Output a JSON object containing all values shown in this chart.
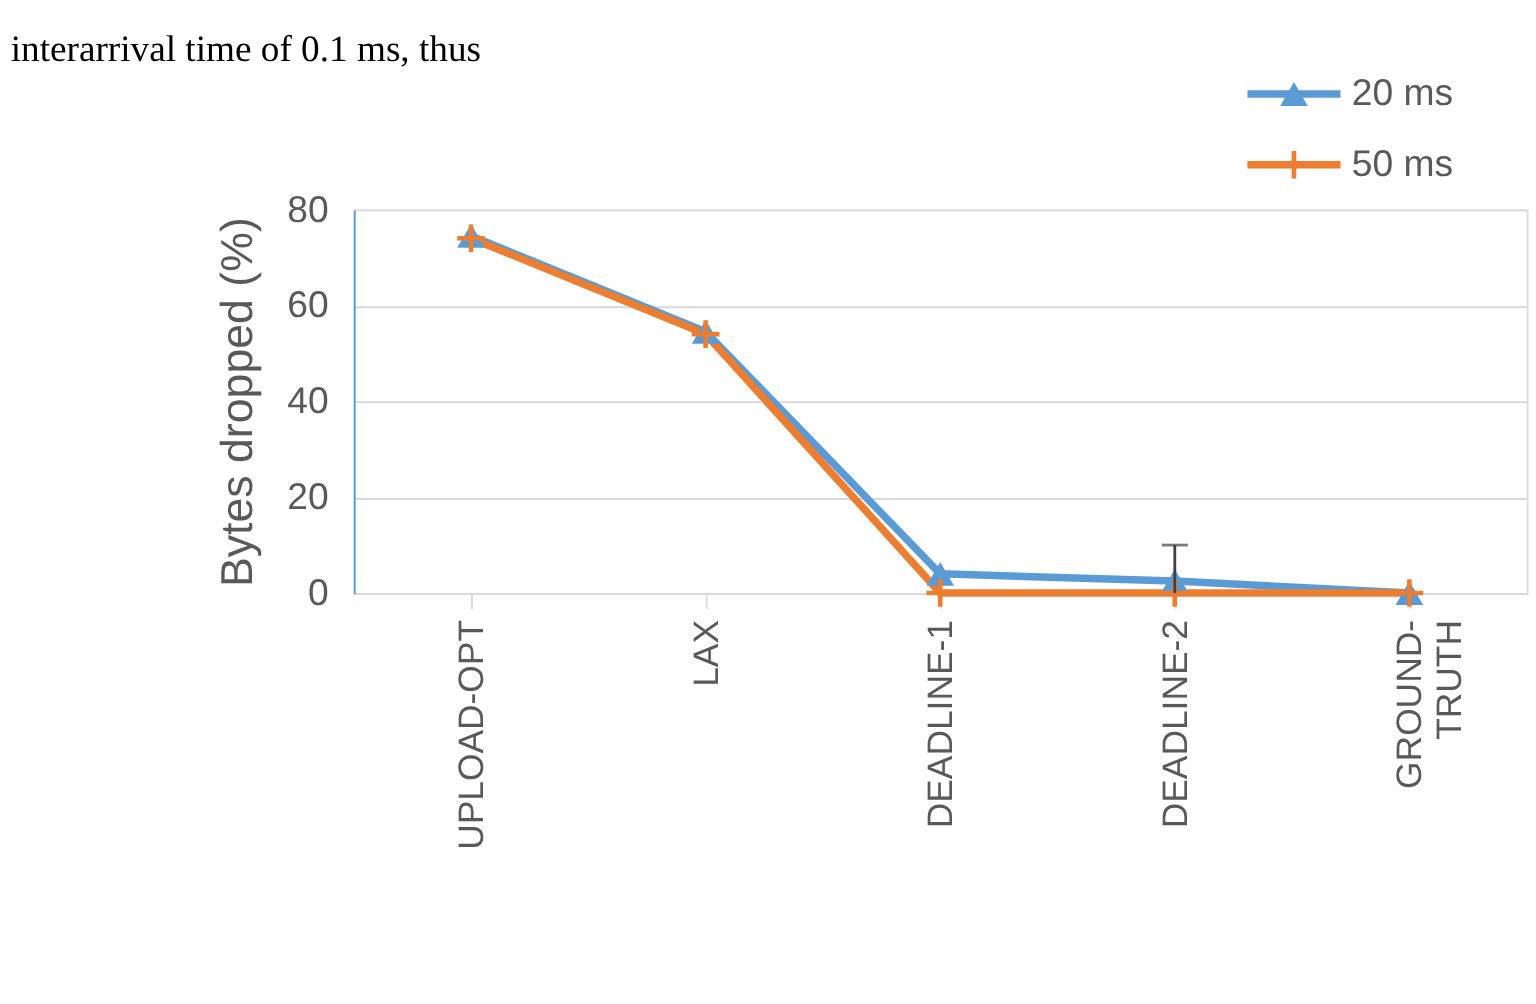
{
  "chart_data": {
    "type": "line",
    "annotations": [
      "interarrival time of 0.1 ms, thus"
    ],
    "ylabel": "Bytes dropped (%)",
    "categories": [
      "UPLOAD-OPT",
      "LAX",
      "DEADLINE-1",
      "DEADLINE-2",
      "GROUND-TRUTH"
    ],
    "series": [
      {
        "name": "20 ms",
        "color": "#5b9bd5",
        "marker": "triangle",
        "values": [
          74.5,
          54.5,
          4,
          2.5,
          0
        ],
        "errors": [
          null,
          null,
          null,
          [
            0,
            10
          ],
          null
        ]
      },
      {
        "name": "50 ms",
        "color": "#ed7d31",
        "marker": "cross",
        "values": [
          74,
          54,
          0,
          0,
          0
        ]
      }
    ],
    "ylim": [
      0,
      80
    ],
    "yticks": [
      0,
      20,
      40,
      60,
      80
    ],
    "grid": "y",
    "legend": "top right"
  }
}
